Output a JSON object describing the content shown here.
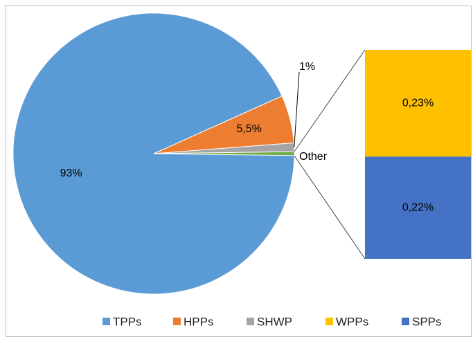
{
  "chart_data": {
    "type": "pie-of-bar",
    "pie": {
      "categories": [
        "TPPs",
        "HPPs",
        "SHWP"
      ],
      "values": [
        93,
        5.5,
        1
      ],
      "value_labels": [
        "93%",
        "5,5%",
        "1%"
      ],
      "colors": [
        "#5b9bd5",
        "#ed7d31",
        "#a5a5a5"
      ],
      "other_label": "Other",
      "other_color": "#70ad47"
    },
    "bar": {
      "categories": [
        "WPPs",
        "SPPs"
      ],
      "values": [
        0.23,
        0.22
      ],
      "value_labels": [
        "0,23%",
        "0,22%"
      ],
      "colors": [
        "#ffc000",
        "#4472c4"
      ]
    },
    "legend": true
  }
}
